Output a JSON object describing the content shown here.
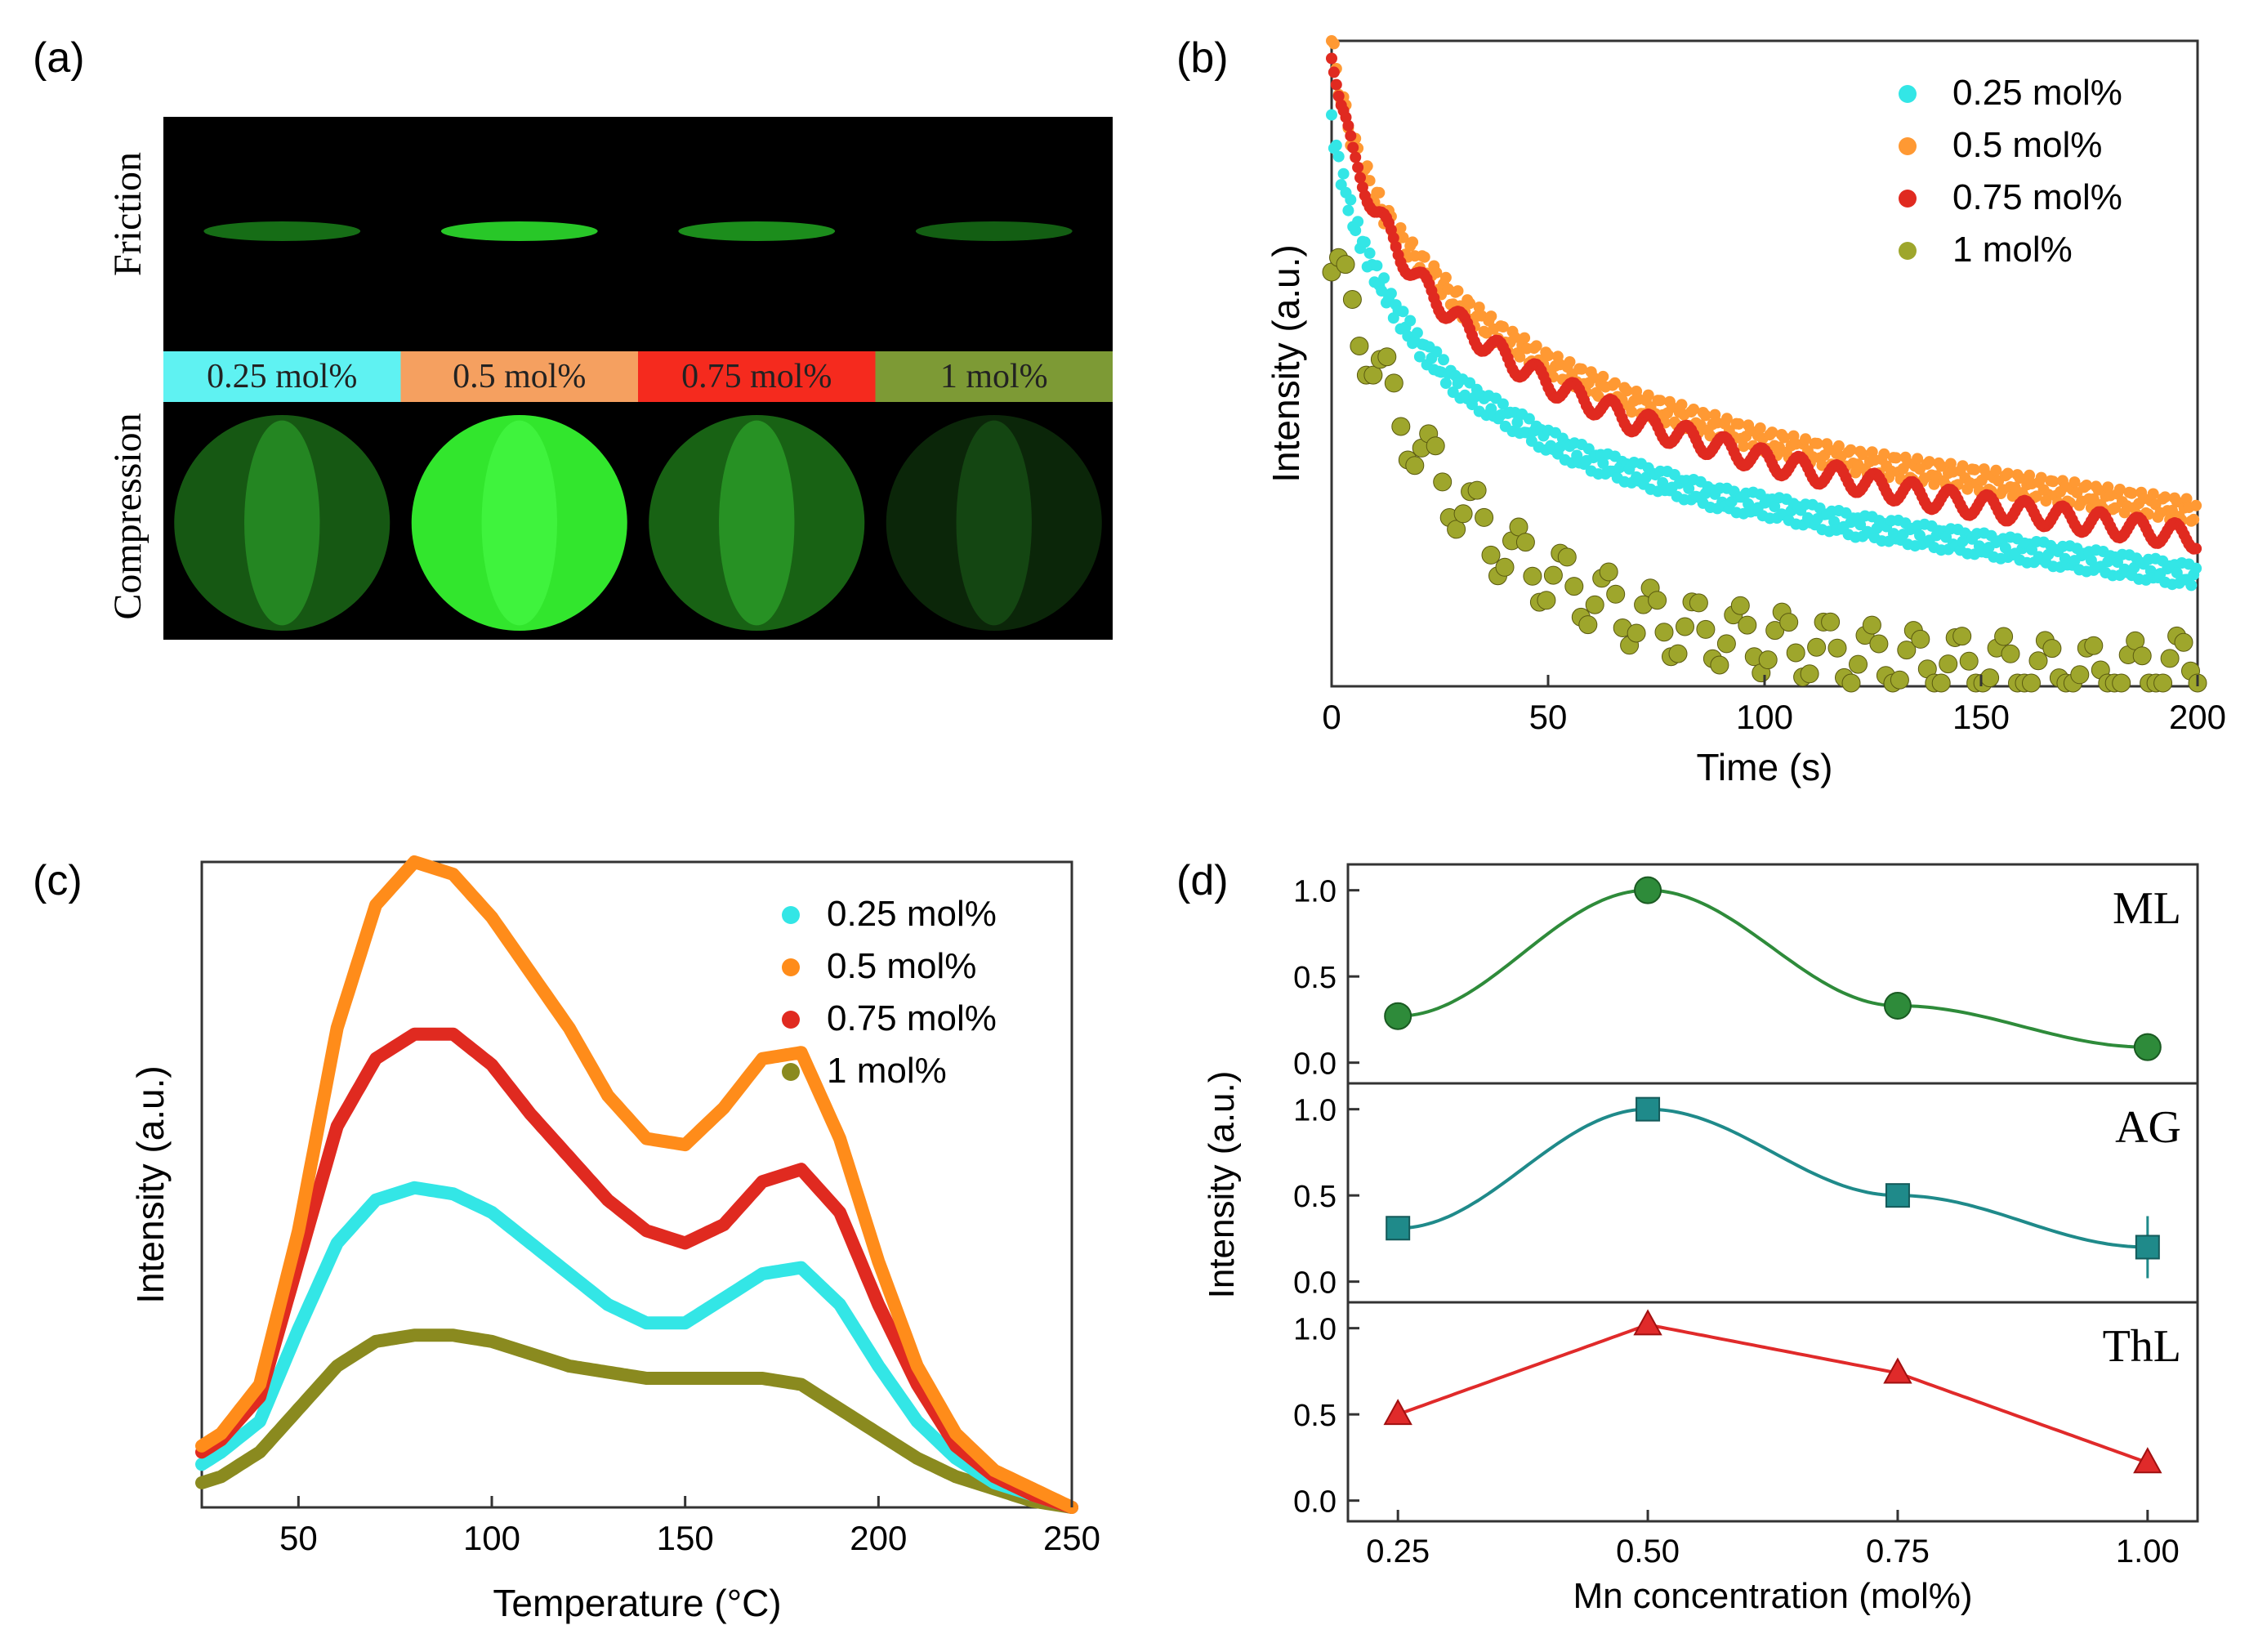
{
  "panels": {
    "a": {
      "label": "(a)"
    },
    "b": {
      "label": "(b)"
    },
    "c": {
      "label": "(c)"
    },
    "d": {
      "label": "(d)"
    }
  },
  "photo_panel": {
    "row_labels": [
      "Friction",
      "Compression"
    ],
    "samples": [
      {
        "label": "0.25 mol%",
        "color": "#5ff2f2",
        "friction_brightness": 0.35,
        "compression_brightness": 0.45
      },
      {
        "label": "0.5 mol%",
        "color": "#f5a060",
        "friction_brightness": 0.9,
        "compression_brightness": 1.0
      },
      {
        "label": "0.75 mol%",
        "color": "#f52a1e",
        "friction_brightness": 0.55,
        "compression_brightness": 0.5
      },
      {
        "label": "1 mol%",
        "color": "#7d9a35",
        "friction_brightness": 0.25,
        "compression_brightness": 0.15
      }
    ]
  },
  "chart_data": [
    {
      "id": "b",
      "type": "scatter",
      "xlabel": "Time (s)",
      "ylabel": "Intensity (a.u.)",
      "xlim": [
        0,
        200
      ],
      "ylim": [
        0,
        1
      ],
      "xticks": [
        0,
        50,
        100,
        150,
        200
      ],
      "y_tick_labels_shown": false,
      "legend_position": "top-right",
      "series": [
        {
          "name": "0.25 mol%",
          "color": "#33e6e6",
          "x": [
            0,
            2,
            5,
            10,
            15,
            20,
            30,
            40,
            50,
            60,
            70,
            80,
            90,
            100,
            120,
            140,
            160,
            180,
            200
          ],
          "values": [
            0.87,
            0.8,
            0.72,
            0.64,
            0.58,
            0.53,
            0.46,
            0.42,
            0.38,
            0.35,
            0.33,
            0.31,
            0.29,
            0.28,
            0.25,
            0.23,
            0.21,
            0.19,
            0.17
          ]
        },
        {
          "name": "0.5 mol%",
          "color": "#ff9933",
          "x": [
            0,
            2,
            5,
            10,
            15,
            20,
            30,
            40,
            50,
            60,
            70,
            80,
            90,
            100,
            120,
            140,
            160,
            180,
            200
          ],
          "values": [
            1.0,
            0.92,
            0.84,
            0.76,
            0.7,
            0.66,
            0.59,
            0.54,
            0.5,
            0.47,
            0.44,
            0.42,
            0.4,
            0.38,
            0.35,
            0.33,
            0.31,
            0.29,
            0.27
          ]
        },
        {
          "name": "0.75 mol%",
          "color": "#e02a20",
          "x": [
            0,
            2,
            5,
            10,
            15,
            20,
            30,
            40,
            50,
            60,
            70,
            80,
            90,
            100,
            120,
            140,
            160,
            180,
            200
          ],
          "values": [
            0.99,
            0.9,
            0.82,
            0.74,
            0.68,
            0.63,
            0.56,
            0.51,
            0.47,
            0.44,
            0.41,
            0.39,
            0.37,
            0.35,
            0.32,
            0.29,
            0.27,
            0.25,
            0.23
          ]
        },
        {
          "name": "1 mol%",
          "color": "#9ea62c",
          "x": [
            0,
            5,
            10,
            15,
            20,
            25,
            30,
            40,
            50,
            60,
            70,
            80,
            90,
            100,
            110,
            120,
            130,
            140,
            150,
            160,
            170,
            180,
            195
          ],
          "values": [
            0.65,
            0.58,
            0.5,
            0.43,
            0.37,
            0.32,
            0.28,
            0.21,
            0.17,
            0.14,
            0.11,
            0.09,
            0.08,
            0.07,
            0.06,
            0.05,
            0.04,
            0.035,
            0.03,
            0.025,
            0.02,
            0.015,
            0.03
          ]
        }
      ]
    },
    {
      "id": "c",
      "type": "line",
      "xlabel": "Temperature (°C)",
      "ylabel": "Intensity (a.u.)",
      "xlim": [
        25,
        250
      ],
      "ylim": [
        0,
        1.05
      ],
      "xticks": [
        50,
        100,
        150,
        200,
        250
      ],
      "y_tick_labels_shown": false,
      "legend_position": "top-right",
      "x": [
        25,
        30,
        40,
        50,
        60,
        70,
        80,
        90,
        100,
        110,
        120,
        130,
        140,
        150,
        160,
        170,
        180,
        190,
        200,
        210,
        220,
        230,
        240,
        250
      ],
      "series": [
        {
          "name": "0.25 mol%",
          "color": "#33e6e6",
          "values": [
            0.07,
            0.09,
            0.14,
            0.29,
            0.43,
            0.5,
            0.52,
            0.51,
            0.48,
            0.43,
            0.38,
            0.33,
            0.3,
            0.3,
            0.34,
            0.38,
            0.39,
            0.33,
            0.23,
            0.14,
            0.08,
            0.04,
            0.02,
            0.0
          ]
        },
        {
          "name": "0.5 mol%",
          "color": "#ff8c1a",
          "values": [
            0.1,
            0.12,
            0.2,
            0.45,
            0.78,
            0.98,
            1.05,
            1.03,
            0.96,
            0.87,
            0.78,
            0.67,
            0.6,
            0.59,
            0.65,
            0.73,
            0.74,
            0.6,
            0.4,
            0.23,
            0.12,
            0.06,
            0.03,
            0.0
          ]
        },
        {
          "name": "0.75 mol%",
          "color": "#e02a20",
          "values": [
            0.09,
            0.11,
            0.18,
            0.4,
            0.62,
            0.73,
            0.77,
            0.77,
            0.72,
            0.64,
            0.57,
            0.5,
            0.45,
            0.43,
            0.46,
            0.53,
            0.55,
            0.48,
            0.33,
            0.2,
            0.1,
            0.05,
            0.02,
            0.0
          ]
        },
        {
          "name": "1 mol%",
          "color": "#8a8a1f",
          "values": [
            0.04,
            0.05,
            0.09,
            0.16,
            0.23,
            0.27,
            0.28,
            0.28,
            0.27,
            0.25,
            0.23,
            0.22,
            0.21,
            0.21,
            0.21,
            0.21,
            0.2,
            0.16,
            0.12,
            0.08,
            0.05,
            0.03,
            0.01,
            0.0
          ]
        }
      ]
    },
    {
      "id": "d",
      "type": "line",
      "xlabel": "Mn concentration (mol%)",
      "ylabel": "Intensity (a.u.)",
      "xlim": [
        0.2,
        1.05
      ],
      "xticks": [
        "0.25",
        "0.50",
        "0.75",
        "1.00"
      ],
      "yticks": [
        "0.0",
        "0.5",
        "1.0"
      ],
      "ylim": [
        -0.12,
        1.15
      ],
      "subplots": [
        {
          "name": "ML",
          "color": "#2e8b3a",
          "marker": "circle",
          "x": [
            0.25,
            0.5,
            0.75,
            1.0
          ],
          "values": [
            0.27,
            1.0,
            0.33,
            0.09
          ],
          "errors": [
            0.05,
            0.04,
            0.04,
            0.08
          ]
        },
        {
          "name": "AG",
          "color": "#1f8a8a",
          "marker": "square",
          "x": [
            0.25,
            0.5,
            0.75,
            1.0
          ],
          "values": [
            0.31,
            1.0,
            0.5,
            0.2
          ],
          "errors": [
            0.06,
            0.05,
            0.05,
            0.18
          ]
        },
        {
          "name": "ThL",
          "color": "#e02a2a",
          "marker": "triangle",
          "x": [
            0.25,
            0.5,
            0.75,
            1.0
          ],
          "values": [
            0.5,
            1.02,
            0.74,
            0.22
          ],
          "errors": [
            0.0,
            0.0,
            0.0,
            0.0
          ]
        }
      ]
    }
  ]
}
